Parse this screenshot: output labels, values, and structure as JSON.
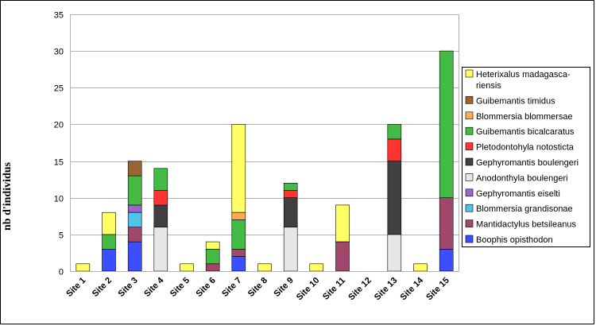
{
  "chart_data": {
    "type": "bar",
    "stacked": true,
    "title": "",
    "xlabel": "",
    "ylabel": "nb d'individus",
    "ylim": [
      0,
      35
    ],
    "yticks": [
      0,
      5,
      10,
      15,
      20,
      25,
      30,
      35
    ],
    "grid": true,
    "legend_position": "right",
    "categories": [
      "Site 1",
      "Site 2",
      "Site 3",
      "Site 4",
      "Site 5",
      "Site 6",
      "Site 7",
      "Site 8",
      "Site 9",
      "Site 10",
      "Site 11",
      "Site 12",
      "Site 13",
      "Site 14",
      "Site 15"
    ],
    "series": [
      {
        "name": "Boophis opisthodon",
        "color": "#3b4fff",
        "values": [
          0,
          3,
          4,
          0,
          0,
          0,
          2,
          0,
          0,
          0,
          0,
          0,
          0,
          0,
          3
        ]
      },
      {
        "name": "Mantidactylus betsileanus",
        "color": "#a0486c",
        "values": [
          0,
          0,
          2,
          0,
          0,
          1,
          1,
          0,
          0,
          0,
          4,
          0,
          0,
          0,
          7
        ]
      },
      {
        "name": "Blommersia grandisonae",
        "color": "#4fc4e8",
        "values": [
          0,
          0,
          2,
          0,
          0,
          0,
          0,
          0,
          0,
          0,
          0,
          0,
          0,
          0,
          0
        ]
      },
      {
        "name": "Gephyromantis eiselti",
        "color": "#9966cc",
        "values": [
          0,
          0,
          1,
          0,
          0,
          0,
          0,
          0,
          0,
          0,
          0,
          0,
          0,
          0,
          0
        ]
      },
      {
        "name": "Anodonthyla boulengeri",
        "color": "#e6e6e6",
        "values": [
          0,
          0,
          0,
          6,
          0,
          0,
          0,
          0,
          6,
          0,
          0,
          0,
          5,
          0,
          0
        ]
      },
      {
        "name": "Gephyromantis boulengeri",
        "color": "#404040",
        "values": [
          0,
          0,
          0,
          3,
          0,
          0,
          0,
          0,
          4,
          0,
          0,
          0,
          10,
          0,
          0
        ]
      },
      {
        "name": "Pletodontohyla notosticta",
        "color": "#ff3333",
        "values": [
          0,
          0,
          0,
          2,
          0,
          0,
          0,
          0,
          1,
          0,
          0,
          0,
          3,
          0,
          0
        ]
      },
      {
        "name": "Guibemantis bicalcaratus",
        "color": "#44bb44",
        "values": [
          0,
          2,
          4,
          3,
          0,
          2,
          4,
          0,
          1,
          0,
          0,
          0,
          2,
          0,
          20
        ]
      },
      {
        "name": "Blommersia blommersae",
        "color": "#ffaa55",
        "values": [
          0,
          0,
          0,
          0,
          0,
          0,
          1,
          0,
          0,
          0,
          0,
          0,
          0,
          0,
          0
        ]
      },
      {
        "name": "Guibemantis timidus",
        "color": "#996633",
        "values": [
          0,
          0,
          2,
          0,
          0,
          0,
          0,
          0,
          0,
          0,
          0,
          0,
          0,
          0,
          0
        ]
      },
      {
        "name": "Heterixalus madagasca-riensis",
        "color": "#ffff66",
        "values": [
          1,
          3,
          0,
          0,
          1,
          1,
          12,
          1,
          0,
          1,
          5,
          0,
          0,
          1,
          0
        ]
      }
    ],
    "legend": {
      "entries": [
        {
          "series": 10,
          "lines": [
            "Heterixalus madagasca-",
            "riensis"
          ]
        },
        {
          "series": 9,
          "lines": [
            "Guibemantis timidus"
          ]
        },
        {
          "series": 8,
          "lines": [
            "Blommersia blommersae"
          ]
        },
        {
          "series": 7,
          "lines": [
            "Guibemantis bicalcaratus"
          ]
        },
        {
          "series": 6,
          "lines": [
            "Pletodontohyla notosticta"
          ]
        },
        {
          "series": 5,
          "lines": [
            "Gephyromantis boulengeri"
          ]
        },
        {
          "series": 4,
          "lines": [
            "Anodonthyla boulengeri"
          ]
        },
        {
          "series": 3,
          "lines": [
            "Gephyromantis eiselti"
          ]
        },
        {
          "series": 2,
          "lines": [
            "Blommersia grandisonae"
          ]
        },
        {
          "series": 1,
          "lines": [
            "Mantidactylus betsileanus"
          ]
        },
        {
          "series": 0,
          "lines": [
            "Boophis opisthodon"
          ]
        }
      ]
    }
  }
}
